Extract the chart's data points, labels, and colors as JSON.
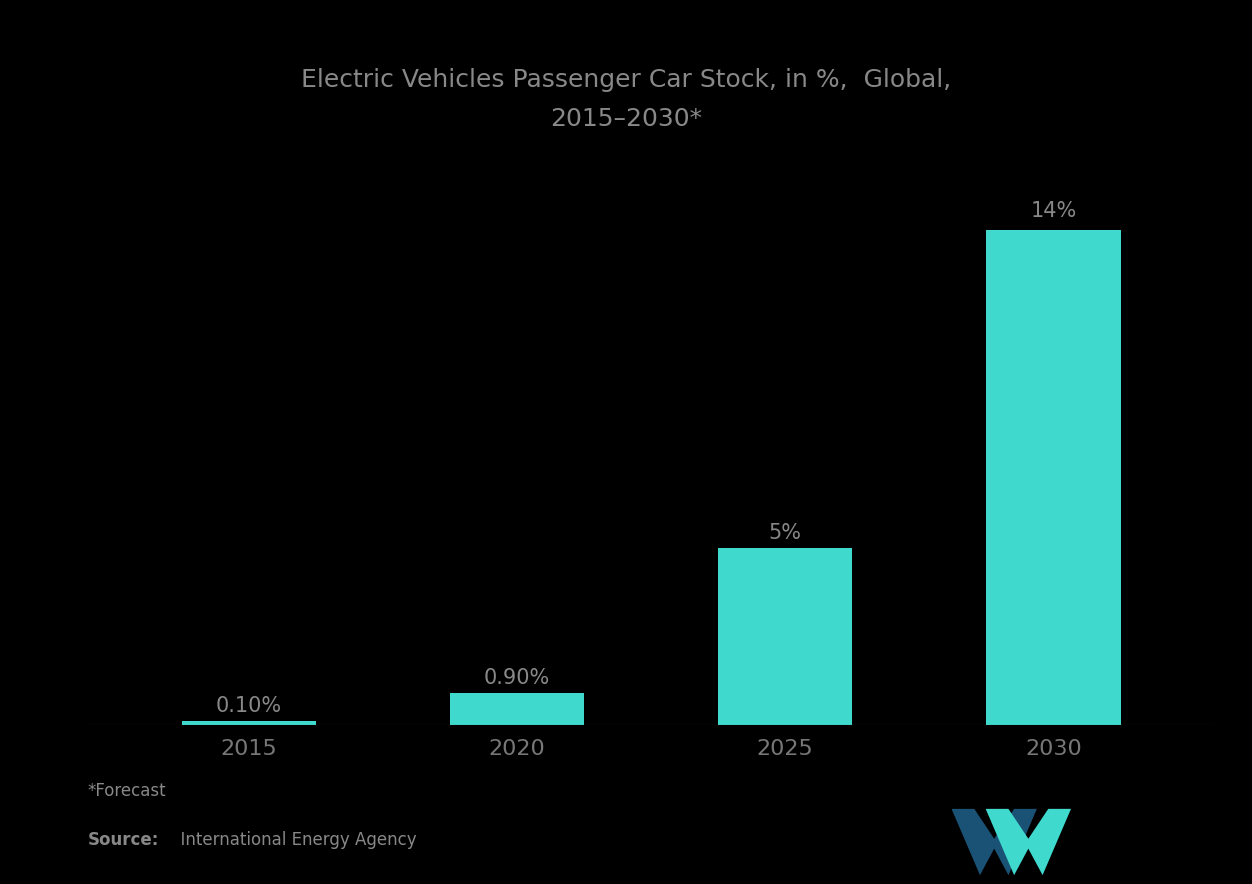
{
  "title_line1": "Electric Vehicles Passenger Car Stock, in %,  Global,",
  "title_line2": "2015–2030*",
  "categories": [
    "2015",
    "2020",
    "2025",
    "2030"
  ],
  "values": [
    0.1,
    0.9,
    5.0,
    14.0
  ],
  "labels": [
    "0.10%",
    "0.90%",
    "5%",
    "14%"
  ],
  "bar_color": "#40D9CE",
  "background_color": "#000000",
  "text_color": "#888888",
  "title_color": "#888888",
  "label_color": "#888888",
  "xlabel_color": "#777777",
  "footnote": "*Forecast",
  "source_bold": "Source:",
  "source_text": "  International Energy Agency",
  "ylim": [
    0,
    16.5
  ],
  "bar_width": 0.5
}
